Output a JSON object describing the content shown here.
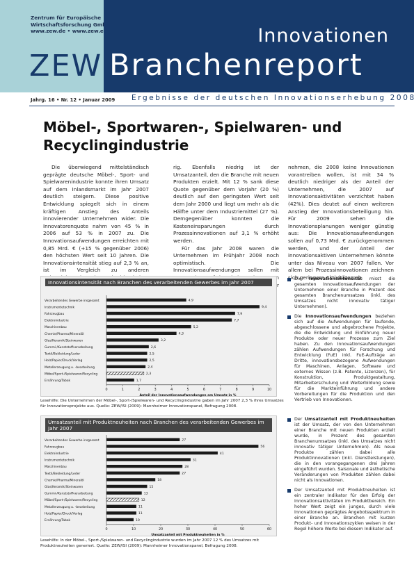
{
  "header": {
    "institute_lines": [
      "Zentrum für Europäische",
      "Wirtschaftsforschung GmbH",
      "www.zew.de • www.zew.eu"
    ],
    "logo": "ZEW",
    "kicker": "Innovationen",
    "report_name": "Branchenreport",
    "issue": "Jahrg. 16 • Nr. 12 • Januar 2009",
    "subtitle": "Ergebnisse der deutschen Innovationserhebung 2008"
  },
  "article": {
    "title": "Möbel-, Sportwaren-, Spielwaren- und Recyclingindustrie",
    "col1": [
      "Die überwiegend mittelständisch geprägte deutsche Möbel-, Sport- und Spielwarenindustrie konnte ihren Umsatz auf dem Inlandsmarkt im Jahr 2007 deutlich steigern. Diese positive Entwicklung spiegelt sich in einem kräftigen Anstieg des Anteils innovierender Unternehmen wider. Die Innovatorenquote nahm von 45 % in 2006 auf 53 % in 2007 zu. Die Innovationsaufwendungen erreichten mit 0,85 Mrd. € (+15 % gegenüber 2006) den höchsten Wert seit 10 Jahren. Die Innovationsintensität stieg auf 2,3 % an, ist im Vergleich zu anderen Industriebranchen aber weiterhin nied-"
    ],
    "col2": [
      "rig. Ebenfalls niedrig ist der Umsatzanteil, den die Branche mit neuen Produkten erzielt. Mit 12 % sank diese Quote gegenüber dem Vorjahr (20 %) deutlich auf den geringsten Wert seit dem Jahr 2000 und liegt um mehr als die Hälfte unter dem Industriemittel (27 %). Demgegenüber konnten die Kosteneinsparungen durch Prozessinnovationen auf 3,1 % erhöht werden.",
      "Für das Jahr 2008 waren die Unternehmen im Frühjahr 2008 noch optimistisch. Die Innovationsaufwendungen sollen mit 0,84 Mrd. € auf dem hohen Niveau von 2007 gehalten werden. Der Anteil der Unter-"
    ],
    "col3": [
      "nehmen, die 2008 keine Innovationen vorantreiben wollen, ist mit 34 % deutlich niedriger als der Anteil der Unternehmen, die 2007 auf Innovationsaktivitäten verzichtet haben (42%). Dies deutet auf einen weiteren Anstieg der Innovationsbeteiligung hin. Für 2009 sehen die Innovationsplanungen weniger günstig aus: Die Innovationsaufwendungen sollen auf 0,73 Mrd. € zurückgenommen werden, und der Anteil der innovationsaktiven Unternehmen könnte unter das Niveau von 2007 fallen. Vor allem bei Prozessinnovationen zeichnen sich geringere Aktivitäten ab."
    ]
  },
  "chart_data": [
    {
      "type": "bar",
      "orientation": "horizontal",
      "title": "Innovationsintensität nach Branchen des verarbeitenden Gewerbes im Jahr 2007",
      "xlabel": "Anteil der Innovationsaufwendungen am Umsatz in %",
      "xlim": [
        0,
        10
      ],
      "xticks": [
        "0",
        "1",
        "2",
        "3",
        "4",
        "5",
        "6",
        "7",
        "8",
        "9",
        "10"
      ],
      "categories": [
        "Verarbeitendes Gewerbe insgesamt",
        "Instrumentetechnik",
        "Fahrzeugbau",
        "Elektroindustrie",
        "Maschinenbau",
        "Chemie/Pharma/Mineralöl",
        "Glas/Keramik/Steinwaren",
        "Gummi-/Kunststoffverarbeitung",
        "Textil/Bekleidung/Leder",
        "Holz/Papier/Druck/Verlag",
        "Metallerzeugung u. -bearbeitung",
        "Möbel/Sport-/Spielwaren/Recycling",
        "Ernährung/Tabak"
      ],
      "values": [
        4.9,
        9.4,
        7.9,
        7.7,
        5.2,
        4.3,
        3.2,
        2.6,
        2.5,
        2.5,
        2.4,
        2.3,
        1.7
      ],
      "value_labels": [
        "4,9",
        "9,4",
        "7,9",
        "7,7",
        "5,2",
        "4,3",
        "3,2",
        "2,6",
        "2,5",
        "2,5",
        "2,4",
        "2,3",
        "1,7"
      ],
      "highlight_index": 11,
      "caption": "Lesehilfe: Die Unternehmen der Möbel-, Sport-/Spielwaren- und Recyclingindustrie gaben im Jahr 2007 2,3 % ihres Umsatzes für Innovationsprojekte aus. Quelle: ZEW/ISI (2009): Mannheimer Innovationspanel, Befragung 2008."
    },
    {
      "type": "bar",
      "orientation": "horizontal",
      "title": "Umsatzanteil mit Produktneuheiten nach Branchen des verarbeitenden Gewerbes im Jahr 2007",
      "xlabel": "Umsatzanteil mit Produktneuheiten in %",
      "xlim": [
        0,
        60
      ],
      "xticks": [
        "0",
        "10",
        "20",
        "30",
        "40",
        "50",
        "60"
      ],
      "categories": [
        "Verarbeitendes Gewerbe insgesamt",
        "Fahrzeugbau",
        "Elektroindustrie",
        "Instrumentetechnik",
        "Maschinenbau",
        "Textil/Bekleidung/Leder",
        "Chemie/Pharma/Mineralöl",
        "Glas/Keramik/Steinwaren",
        "Gummi-/Kunststoffverarbeitung",
        "Möbel/Sport-/Spielwaren/Recycling",
        "Metallerzeugung u. -bearbeitung",
        "Holz/Papier/Druck/Verlag",
        "Ernährung/Tabak"
      ],
      "values": [
        27,
        56,
        41,
        31,
        28,
        27,
        18,
        15,
        13,
        12,
        11,
        11,
        10
      ],
      "value_labels": [
        "27",
        "56",
        "41",
        "31",
        "28",
        "27",
        "18",
        "15",
        "13",
        "12",
        "11",
        "11",
        "10"
      ],
      "highlight_index": 9,
      "caption": "Lesehilfe: In der Möbel-, Sport-/Spielwaren- und Recyclingindustrie wurden im Jahr 2007 12 % des Umsatzes mit Produktneuheiten generiert. Quelle: ZEW/ISI (2009): Mannheimer Innovationspanel, Befragung 2008."
    }
  ],
  "notes1": [
    {
      "term": "Innovationsintensität",
      "text": " misst die gesamten Innovationsaufwendungen der Unternehmen einer Branche in Prozent des gesamten Branchenumsatzes (inkl. des Umsatzes nicht innovativ tätiger Unternehmen)."
    },
    {
      "term": "Innovationsaufwendungen",
      "text": " beziehen sich auf die Aufwendungen für laufende, abgeschlossene und abgebrochene Projekte, die die Entwicklung und Einführung neuer Produkte oder neuer Prozesse zum Ziel haben. Zu den Innovationsaufwendungen zählen Aufwendungen für Forschung und Entwicklung (FuE) inkl. FuE-Aufträge an Dritte, innovationsbezogene Aufwendungen für Maschinen, Anlagen, Software und externes Wissen (z.B. Patente, Lizenzen), für Konstruktion, Produktgestaltung, Mitarbeiterschulung und Weiterbildung sowie für die Markteinführung und andere Vorbereitungen für die Produktion und den Vertrieb von Innovationen."
    }
  ],
  "notes2": [
    {
      "pre": "Der ",
      "term": "Umsatzanteil mit Produktneuheiten",
      "text": " ist der Umsatz, der von den Unternehmen einer Branche mit neuen Produkten erzielt wurde, in Prozent des gesamten Branchenumsatzes (inkl. des Umsatzes nicht innovativ tätiger Unternehmen). Als neue Produkte zählen dabei alle Produktinnovationen (inkl. Dienstleistungen), die in den vorangegangenen drei Jahren eingeführt wurden. Saisonale und ästhetische Veränderungen von Produkten zählen dabei nicht als Innovationen."
    },
    {
      "pre": "",
      "term": "",
      "text": "Der Umsatzanteil mit Produktneuheiten ist ein zentraler Indikator für den Erfolg der Innovationsaktivitäten im Produktbereich. Ein hoher Wert zeigt ein junges, durch viele Innovationen geprägtes Angebotsspektrum in einer Branche an. Branchen mit kurzen Produkt- und Innovationszyklen weisen in der Regel höhere Werte bei diesem Indikator auf."
    }
  ]
}
